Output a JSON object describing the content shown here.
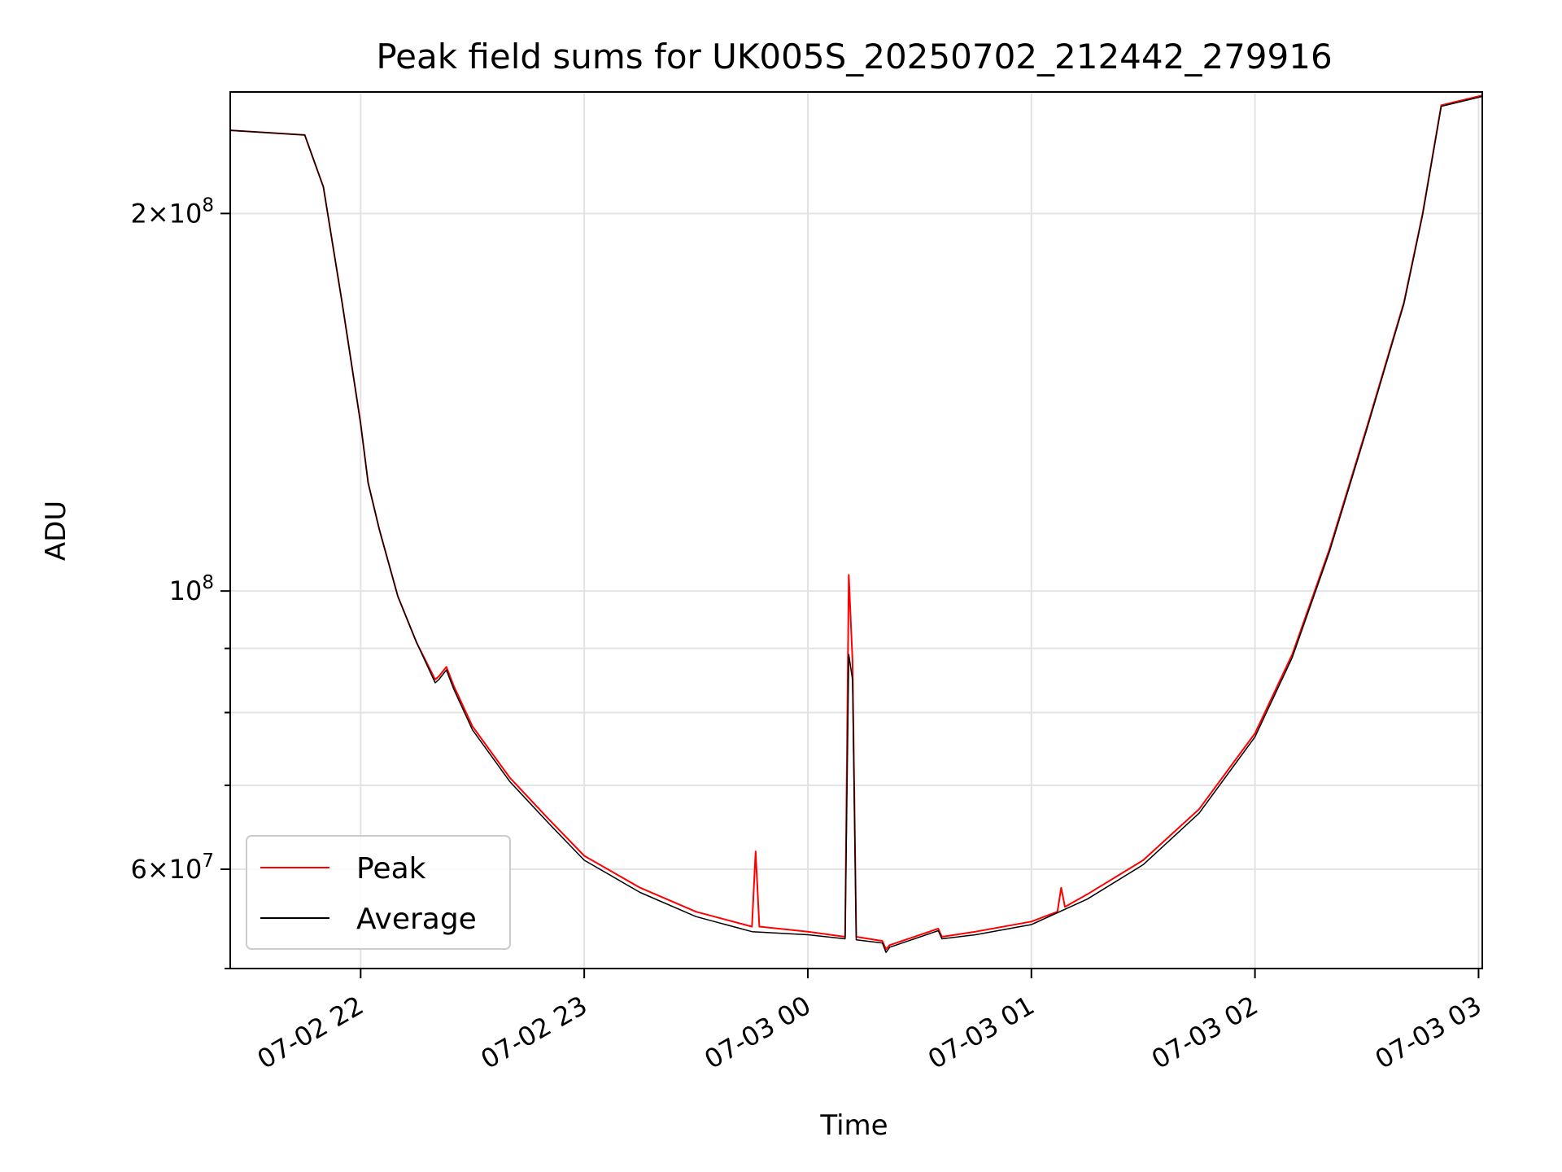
{
  "chart_data": {
    "type": "line",
    "title": "Peak field sums for UK005S_20250702_212442_279916",
    "xlabel": "Time",
    "ylabel": "ADU",
    "yscale": "log",
    "ylim": [
      50000000,
      250000000
    ],
    "xlim": [
      "2025-07-02 21:25",
      "2025-07-03 03:01"
    ],
    "grid": true,
    "legend_position": "lower-left",
    "x_ticks": [
      {
        "time": "2025-07-02 22:00",
        "label": "07-02 22"
      },
      {
        "time": "2025-07-02 23:00",
        "label": "07-02 23"
      },
      {
        "time": "2025-07-03 00:00",
        "label": "07-03 00"
      },
      {
        "time": "2025-07-03 01:00",
        "label": "07-03 01"
      },
      {
        "time": "2025-07-03 02:00",
        "label": "07-03 02"
      },
      {
        "time": "2025-07-03 03:00",
        "label": "07-03 03"
      }
    ],
    "y_major_ticks": [
      {
        "value": 60000000,
        "mantissa": "6",
        "exponent": "7"
      },
      {
        "value": 100000000,
        "mantissa": "",
        "exponent": "8"
      },
      {
        "value": 200000000,
        "mantissa": "2",
        "exponent": "8"
      }
    ],
    "y_minor_ticks": [
      50000000,
      70000000,
      80000000,
      90000000
    ],
    "series": [
      {
        "name": "Peak",
        "color": "#ff0000",
        "x": [
          "2025-07-02 21:25",
          "2025-07-02 21:45",
          "2025-07-02 21:50",
          "2025-07-02 21:55",
          "2025-07-02 22:00",
          "2025-07-02 22:02",
          "2025-07-02 22:05",
          "2025-07-02 22:10",
          "2025-07-02 22:15",
          "2025-07-02 22:20",
          "2025-07-02 22:21",
          "2025-07-02 22:23",
          "2025-07-02 22:25",
          "2025-07-02 22:30",
          "2025-07-02 22:40",
          "2025-07-02 22:50",
          "2025-07-02 23:00",
          "2025-07-02 23:15",
          "2025-07-02 23:30",
          "2025-07-02 23:45",
          "2025-07-02 23:46",
          "2025-07-02 23:47",
          "2025-07-03 00:00",
          "2025-07-03 00:10",
          "2025-07-03 00:11",
          "2025-07-03 00:12",
          "2025-07-03 00:13",
          "2025-07-03 00:20",
          "2025-07-03 00:21",
          "2025-07-03 00:22",
          "2025-07-03 00:35",
          "2025-07-03 00:36",
          "2025-07-03 00:45",
          "2025-07-03 01:00",
          "2025-07-03 01:07",
          "2025-07-03 01:08",
          "2025-07-03 01:09",
          "2025-07-03 01:15",
          "2025-07-03 01:30",
          "2025-07-03 01:45",
          "2025-07-03 02:00",
          "2025-07-03 02:10",
          "2025-07-03 02:20",
          "2025-07-03 02:30",
          "2025-07-03 02:40",
          "2025-07-03 02:45",
          "2025-07-03 02:50",
          "2025-07-03 03:00",
          "2025-07-03 03:01"
        ],
        "values": [
          233000000,
          231000000,
          210000000,
          170000000,
          136000000,
          122000000,
          112000000,
          99000000,
          91000000,
          85000000,
          85500000,
          87000000,
          84000000,
          78000000,
          71000000,
          66000000,
          61500000,
          58000000,
          55500000,
          54000000,
          62000000,
          54000000,
          53500000,
          53000000,
          103000000,
          88000000,
          53000000,
          52600000,
          51800000,
          52200000,
          53800000,
          53000000,
          53500000,
          54500000,
          55500000,
          58000000,
          56000000,
          57300000,
          61000000,
          67000000,
          77000000,
          89000000,
          108000000,
          135000000,
          170000000,
          200000000,
          244000000,
          248000000,
          248500000
        ]
      },
      {
        "name": "Average",
        "color": "#000000",
        "x": [
          "2025-07-02 21:25",
          "2025-07-02 21:45",
          "2025-07-02 21:50",
          "2025-07-02 21:55",
          "2025-07-02 22:00",
          "2025-07-02 22:02",
          "2025-07-02 22:05",
          "2025-07-02 22:10",
          "2025-07-02 22:15",
          "2025-07-02 22:20",
          "2025-07-02 22:21",
          "2025-07-02 22:23",
          "2025-07-02 22:25",
          "2025-07-02 22:30",
          "2025-07-02 22:40",
          "2025-07-02 22:50",
          "2025-07-02 23:00",
          "2025-07-02 23:15",
          "2025-07-02 23:30",
          "2025-07-02 23:45",
          "2025-07-03 00:00",
          "2025-07-03 00:10",
          "2025-07-03 00:11",
          "2025-07-03 00:12",
          "2025-07-03 00:13",
          "2025-07-03 00:20",
          "2025-07-03 00:21",
          "2025-07-03 00:22",
          "2025-07-03 00:35",
          "2025-07-03 00:36",
          "2025-07-03 00:45",
          "2025-07-03 01:00",
          "2025-07-03 01:15",
          "2025-07-03 01:30",
          "2025-07-03 01:45",
          "2025-07-03 02:00",
          "2025-07-03 02:10",
          "2025-07-03 02:20",
          "2025-07-03 02:30",
          "2025-07-03 02:40",
          "2025-07-03 02:45",
          "2025-07-03 02:50",
          "2025-07-03 03:00",
          "2025-07-03 03:01"
        ],
        "values": [
          233000000,
          231000000,
          210000000,
          170000000,
          136000000,
          122000000,
          112000000,
          99000000,
          91000000,
          84500000,
          85000000,
          86500000,
          83500000,
          77500000,
          70500000,
          65500000,
          61000000,
          57500000,
          55000000,
          53500000,
          53200000,
          52800000,
          89000000,
          85000000,
          52700000,
          52400000,
          51500000,
          52000000,
          53600000,
          52800000,
          53200000,
          54200000,
          56800000,
          60500000,
          66500000,
          76500000,
          88500000,
          107500000,
          134500000,
          169500000,
          199500000,
          243500000,
          247500000,
          248000000
        ]
      }
    ]
  }
}
